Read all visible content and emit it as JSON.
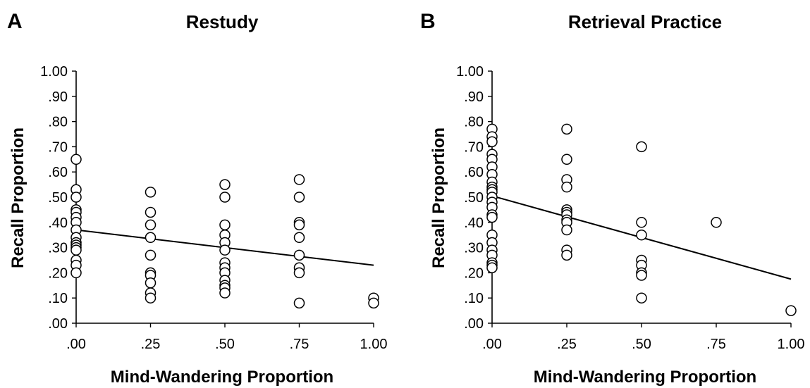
{
  "chart_data": [
    {
      "type": "scatter",
      "panel_letter": "A",
      "title": "Restudy",
      "xlabel": "Mind-Wandering Proportion",
      "ylabel": "Recall Proportion",
      "xlim": [
        0,
        1
      ],
      "ylim": [
        0,
        1
      ],
      "x_ticks": [
        ".00",
        ".25",
        ".50",
        ".75",
        "1.00"
      ],
      "y_ticks": [
        ".00",
        ".10",
        ".20",
        ".30",
        ".40",
        ".50",
        ".60",
        ".70",
        ".80",
        ".90",
        "1.00"
      ],
      "points": [
        {
          "x": 0,
          "y": 0.65
        },
        {
          "x": 0,
          "y": 0.53
        },
        {
          "x": 0,
          "y": 0.5
        },
        {
          "x": 0,
          "y": 0.45
        },
        {
          "x": 0,
          "y": 0.44
        },
        {
          "x": 0,
          "y": 0.42
        },
        {
          "x": 0,
          "y": 0.4
        },
        {
          "x": 0,
          "y": 0.37
        },
        {
          "x": 0,
          "y": 0.34
        },
        {
          "x": 0,
          "y": 0.32
        },
        {
          "x": 0,
          "y": 0.31
        },
        {
          "x": 0,
          "y": 0.3
        },
        {
          "x": 0,
          "y": 0.29
        },
        {
          "x": 0,
          "y": 0.25
        },
        {
          "x": 0,
          "y": 0.23
        },
        {
          "x": 0,
          "y": 0.2
        },
        {
          "x": 0.25,
          "y": 0.52
        },
        {
          "x": 0.25,
          "y": 0.44
        },
        {
          "x": 0.25,
          "y": 0.39
        },
        {
          "x": 0.25,
          "y": 0.34
        },
        {
          "x": 0.25,
          "y": 0.27
        },
        {
          "x": 0.25,
          "y": 0.2
        },
        {
          "x": 0.25,
          "y": 0.19
        },
        {
          "x": 0.25,
          "y": 0.16
        },
        {
          "x": 0.25,
          "y": 0.12
        },
        {
          "x": 0.25,
          "y": 0.1
        },
        {
          "x": 0.5,
          "y": 0.55
        },
        {
          "x": 0.5,
          "y": 0.5
        },
        {
          "x": 0.5,
          "y": 0.39
        },
        {
          "x": 0.5,
          "y": 0.35
        },
        {
          "x": 0.5,
          "y": 0.32
        },
        {
          "x": 0.5,
          "y": 0.29
        },
        {
          "x": 0.5,
          "y": 0.24
        },
        {
          "x": 0.5,
          "y": 0.22
        },
        {
          "x": 0.5,
          "y": 0.2
        },
        {
          "x": 0.5,
          "y": 0.17
        },
        {
          "x": 0.5,
          "y": 0.15
        },
        {
          "x": 0.5,
          "y": 0.14
        },
        {
          "x": 0.5,
          "y": 0.12
        },
        {
          "x": 0.75,
          "y": 0.57
        },
        {
          "x": 0.75,
          "y": 0.5
        },
        {
          "x": 0.75,
          "y": 0.4
        },
        {
          "x": 0.75,
          "y": 0.39
        },
        {
          "x": 0.75,
          "y": 0.34
        },
        {
          "x": 0.75,
          "y": 0.27
        },
        {
          "x": 0.75,
          "y": 0.22
        },
        {
          "x": 0.75,
          "y": 0.2
        },
        {
          "x": 0.75,
          "y": 0.08
        },
        {
          "x": 1.0,
          "y": 0.1
        },
        {
          "x": 1.0,
          "y": 0.08
        }
      ],
      "trendline": {
        "x": [
          0,
          1
        ],
        "y": [
          0.37,
          0.23
        ]
      }
    },
    {
      "type": "scatter",
      "panel_letter": "B",
      "title": "Retrieval Practice",
      "xlabel": "Mind-Wandering Proportion",
      "ylabel": "Recall Proportion",
      "xlim": [
        0,
        1
      ],
      "ylim": [
        0,
        1
      ],
      "x_ticks": [
        ".00",
        ".25",
        ".50",
        ".75",
        "1.00"
      ],
      "y_ticks": [
        ".00",
        ".10",
        ".20",
        ".30",
        ".40",
        ".50",
        ".60",
        ".70",
        ".80",
        ".90",
        "1.00"
      ],
      "points": [
        {
          "x": 0,
          "y": 0.77
        },
        {
          "x": 0,
          "y": 0.74
        },
        {
          "x": 0,
          "y": 0.72
        },
        {
          "x": 0,
          "y": 0.67
        },
        {
          "x": 0,
          "y": 0.65
        },
        {
          "x": 0,
          "y": 0.62
        },
        {
          "x": 0,
          "y": 0.59
        },
        {
          "x": 0,
          "y": 0.56
        },
        {
          "x": 0,
          "y": 0.54
        },
        {
          "x": 0,
          "y": 0.53
        },
        {
          "x": 0,
          "y": 0.52
        },
        {
          "x": 0,
          "y": 0.5
        },
        {
          "x": 0,
          "y": 0.48
        },
        {
          "x": 0,
          "y": 0.46
        },
        {
          "x": 0,
          "y": 0.43
        },
        {
          "x": 0,
          "y": 0.42
        },
        {
          "x": 0,
          "y": 0.35
        },
        {
          "x": 0,
          "y": 0.32
        },
        {
          "x": 0,
          "y": 0.29
        },
        {
          "x": 0,
          "y": 0.27
        },
        {
          "x": 0,
          "y": 0.24
        },
        {
          "x": 0,
          "y": 0.23
        },
        {
          "x": 0,
          "y": 0.22
        },
        {
          "x": 0.25,
          "y": 0.77
        },
        {
          "x": 0.25,
          "y": 0.65
        },
        {
          "x": 0.25,
          "y": 0.57
        },
        {
          "x": 0.25,
          "y": 0.54
        },
        {
          "x": 0.25,
          "y": 0.45
        },
        {
          "x": 0.25,
          "y": 0.44
        },
        {
          "x": 0.25,
          "y": 0.43
        },
        {
          "x": 0.25,
          "y": 0.41
        },
        {
          "x": 0.25,
          "y": 0.4
        },
        {
          "x": 0.25,
          "y": 0.37
        },
        {
          "x": 0.25,
          "y": 0.29
        },
        {
          "x": 0.25,
          "y": 0.27
        },
        {
          "x": 0.5,
          "y": 0.7
        },
        {
          "x": 0.5,
          "y": 0.4
        },
        {
          "x": 0.5,
          "y": 0.35
        },
        {
          "x": 0.5,
          "y": 0.25
        },
        {
          "x": 0.5,
          "y": 0.23
        },
        {
          "x": 0.5,
          "y": 0.2
        },
        {
          "x": 0.5,
          "y": 0.19
        },
        {
          "x": 0.5,
          "y": 0.1
        },
        {
          "x": 0.75,
          "y": 0.4
        },
        {
          "x": 1.0,
          "y": 0.05
        }
      ],
      "trendline": {
        "x": [
          0,
          1
        ],
        "y": [
          0.505,
          0.175
        ]
      }
    }
  ]
}
